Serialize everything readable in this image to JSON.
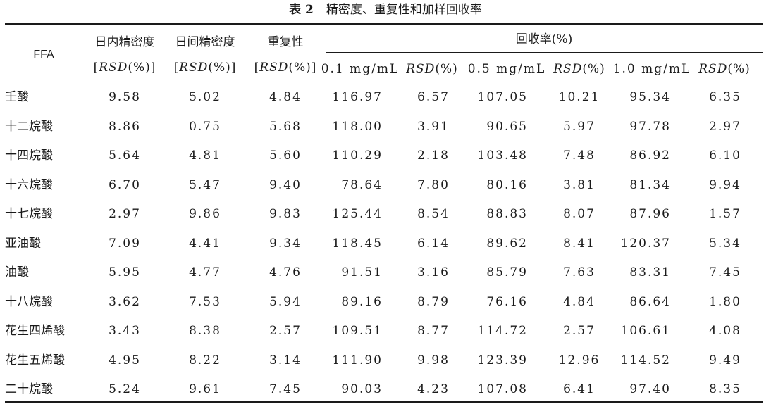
{
  "caption": {
    "number": "表 2",
    "title": "精密度、重复性和加样回收率"
  },
  "header": {
    "ffa": "FFA",
    "intra_day": "日内精密度",
    "inter_day": "日间精密度",
    "repeatability": "重复性",
    "recovery": "回收率(%)",
    "rsd_l": "[",
    "rsd_word": "RSD",
    "rsd_unit": "(%)",
    "rsd_r": "]",
    "conc_1": "0.1 mg/mL",
    "conc_2": "0.5 mg/mL",
    "conc_3": "1.0 mg/mL"
  },
  "rows": [
    [
      "壬酸",
      "9.58",
      "5.02",
      "4.84",
      "116.97",
      "6.57",
      "107.05",
      "10.21",
      "95.34",
      "6.35"
    ],
    [
      "十二烷酸",
      "8.86",
      "0.75",
      "5.68",
      "118.00",
      "3.91",
      "90.65",
      "5.97",
      "97.78",
      "2.97"
    ],
    [
      "十四烷酸",
      "5.64",
      "4.81",
      "5.60",
      "110.29",
      "2.18",
      "103.48",
      "7.48",
      "86.92",
      "6.10"
    ],
    [
      "十六烷酸",
      "6.70",
      "5.47",
      "9.40",
      "78.64",
      "7.80",
      "80.16",
      "3.81",
      "81.34",
      "9.94"
    ],
    [
      "十七烷酸",
      "2.97",
      "9.86",
      "9.83",
      "125.44",
      "8.54",
      "88.83",
      "8.07",
      "87.96",
      "1.57"
    ],
    [
      "亚油酸",
      "7.09",
      "4.41",
      "9.34",
      "118.45",
      "6.14",
      "89.62",
      "8.41",
      "120.37",
      "5.34"
    ],
    [
      "油酸",
      "5.95",
      "4.77",
      "4.76",
      "91.51",
      "3.16",
      "85.79",
      "7.63",
      "83.31",
      "7.45"
    ],
    [
      "十八烷酸",
      "3.62",
      "7.53",
      "5.94",
      "89.16",
      "8.79",
      "76.16",
      "4.84",
      "86.64",
      "1.80"
    ],
    [
      "花生四烯酸",
      "3.43",
      "8.38",
      "2.57",
      "109.51",
      "8.77",
      "114.72",
      "2.57",
      "106.61",
      "4.08"
    ],
    [
      "花生五烯酸",
      "4.95",
      "8.22",
      "3.14",
      "111.90",
      "9.98",
      "123.39",
      "12.96",
      "114.52",
      "9.49"
    ],
    [
      "二十烷酸",
      "5.24",
      "9.61",
      "7.45",
      "90.03",
      "4.23",
      "107.08",
      "6.41",
      "97.40",
      "8.35"
    ]
  ]
}
